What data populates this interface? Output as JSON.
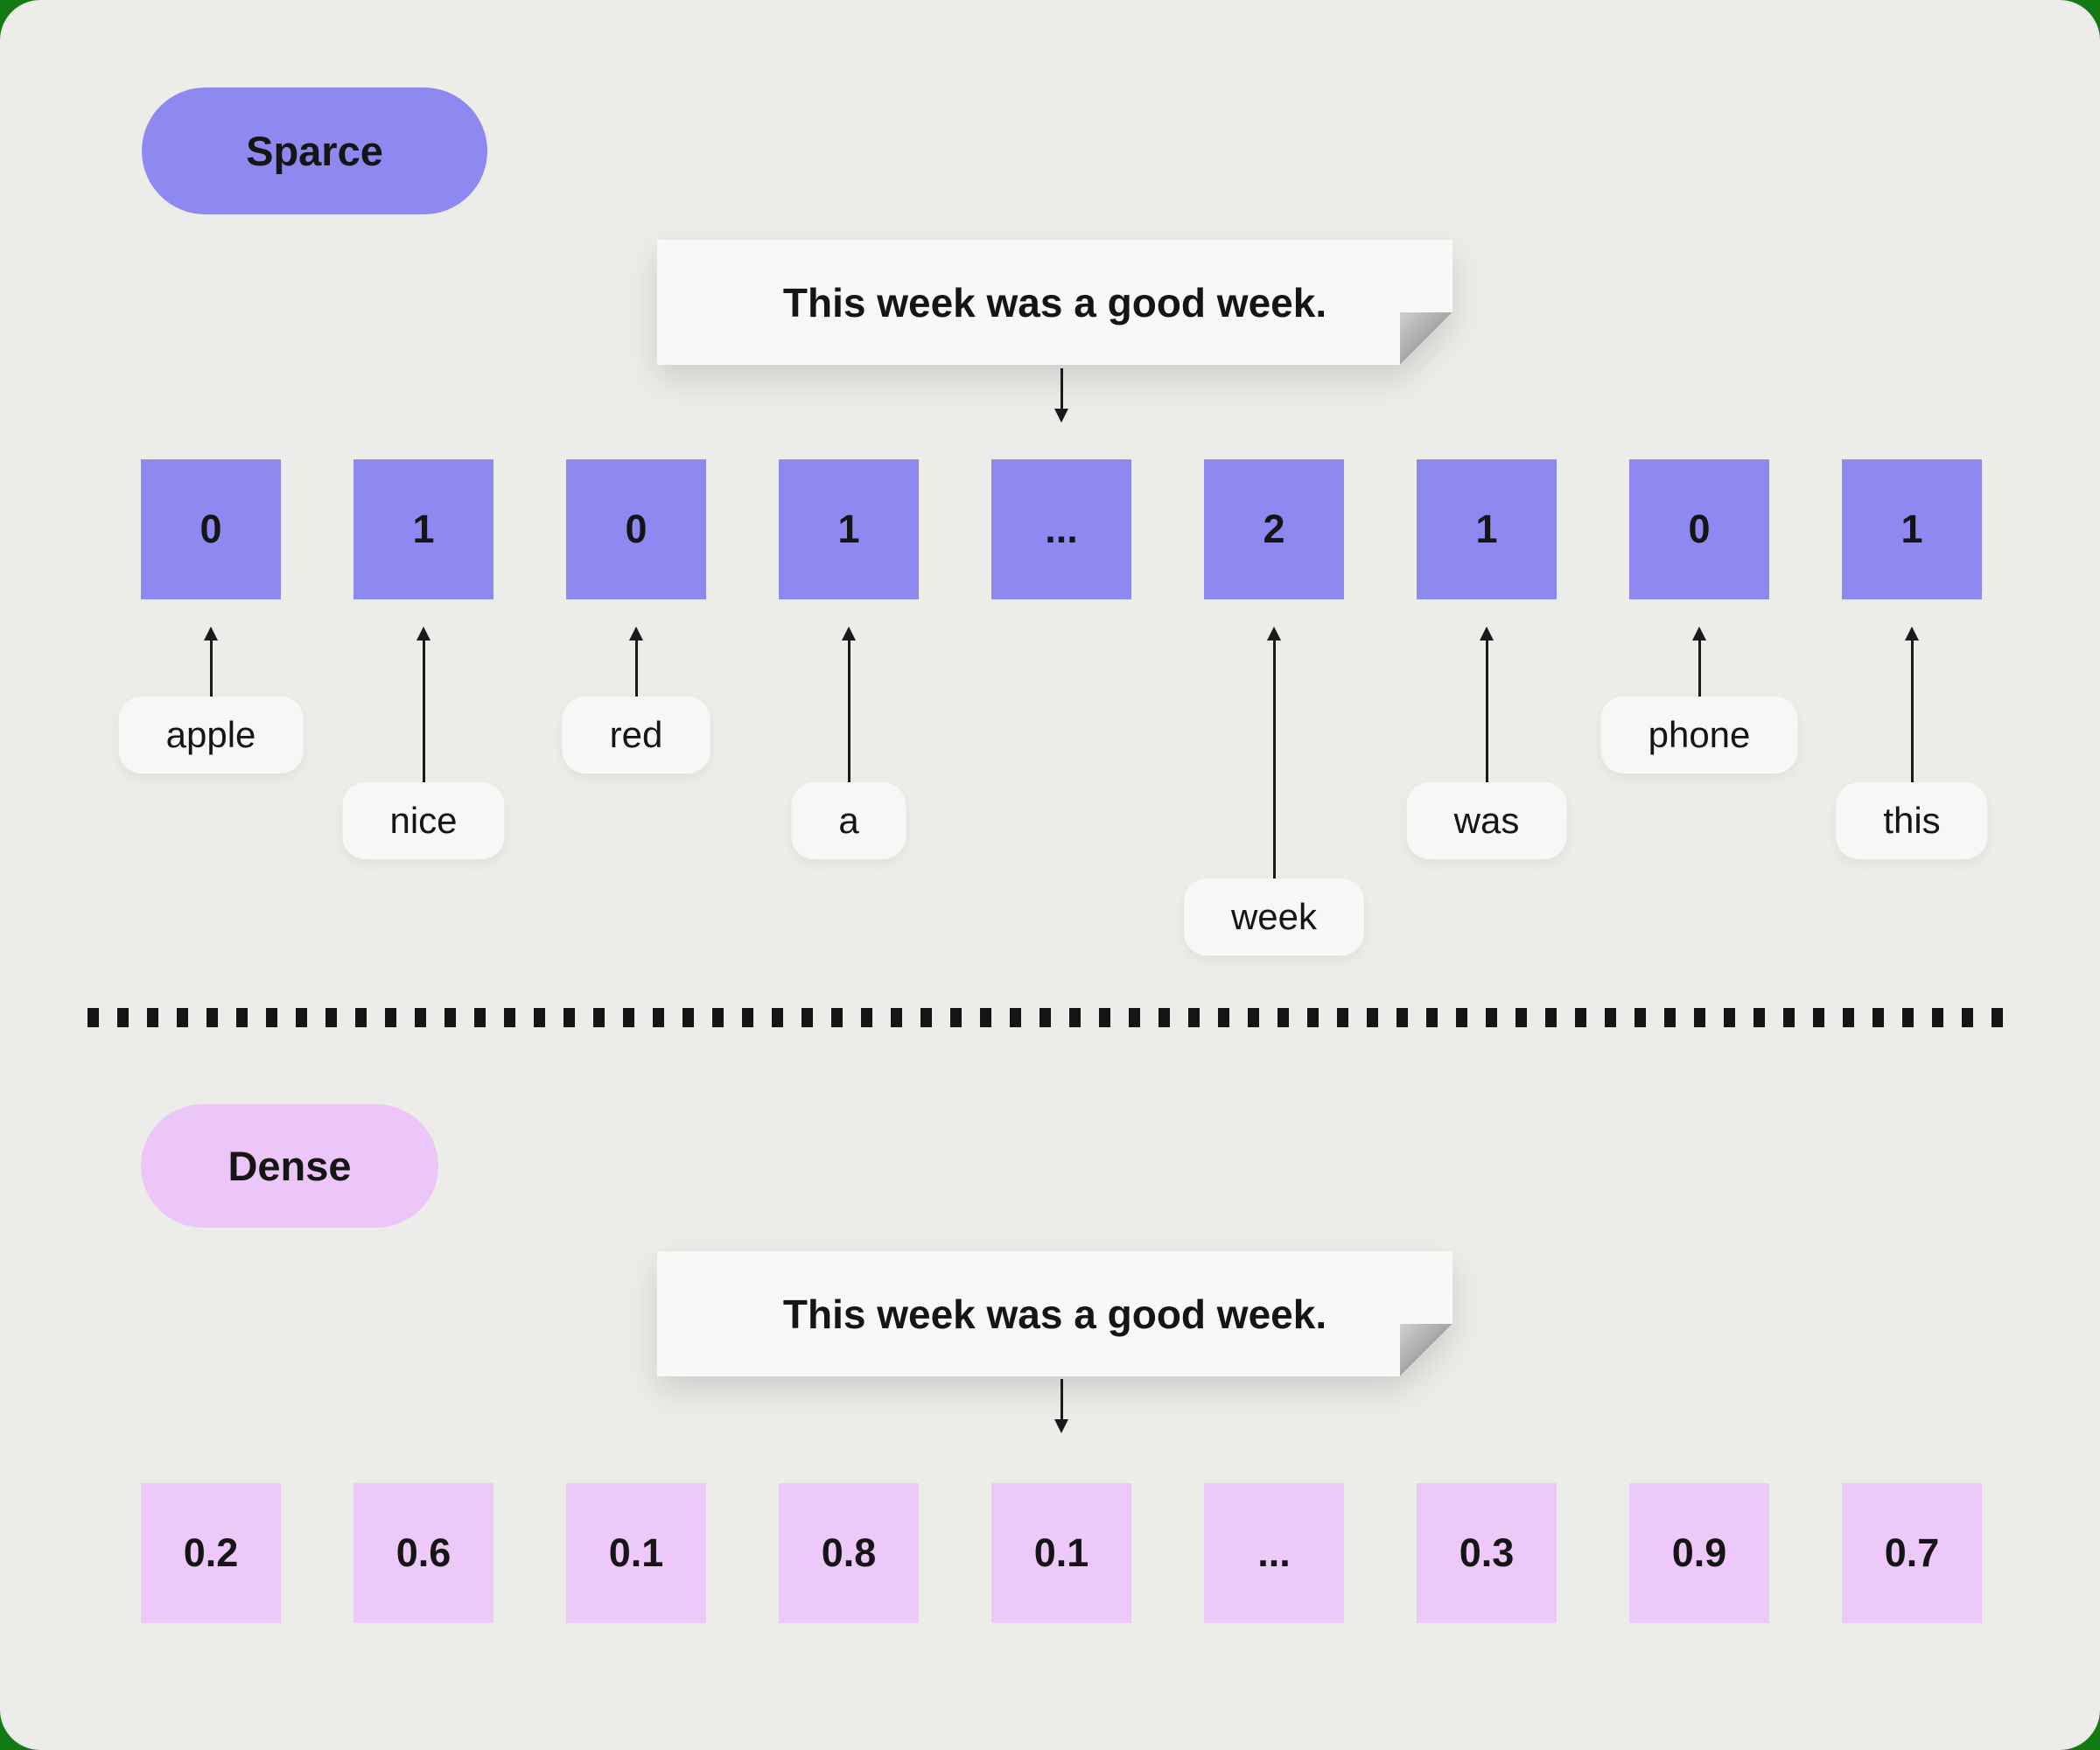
{
  "canvas": {
    "background_color": "#ecece9",
    "frame_color": "#117a13"
  },
  "sparse": {
    "tag": "Sparce",
    "tag_color": "#8e89f0",
    "sentence": "This week was a good week.",
    "cell_color": "#8e89f0",
    "cells": [
      "0",
      "1",
      "0",
      "1",
      "...",
      "2",
      "1",
      "0",
      "1"
    ],
    "words": [
      {
        "label": "apple"
      },
      {
        "label": "nice"
      },
      {
        "label": "red"
      },
      {
        "label": "a"
      },
      {
        "label": "week"
      },
      {
        "label": "was"
      },
      {
        "label": "phone"
      },
      {
        "label": "this"
      }
    ]
  },
  "dense": {
    "tag": "Dense",
    "tag_color": "#ecc6f8",
    "sentence": "This week was a good week.",
    "cell_color": "#edc9f9",
    "cells": [
      "0.2",
      "0.6",
      "0.1",
      "0.8",
      "0.1",
      "...",
      "0.3",
      "0.9",
      "0.7"
    ]
  }
}
